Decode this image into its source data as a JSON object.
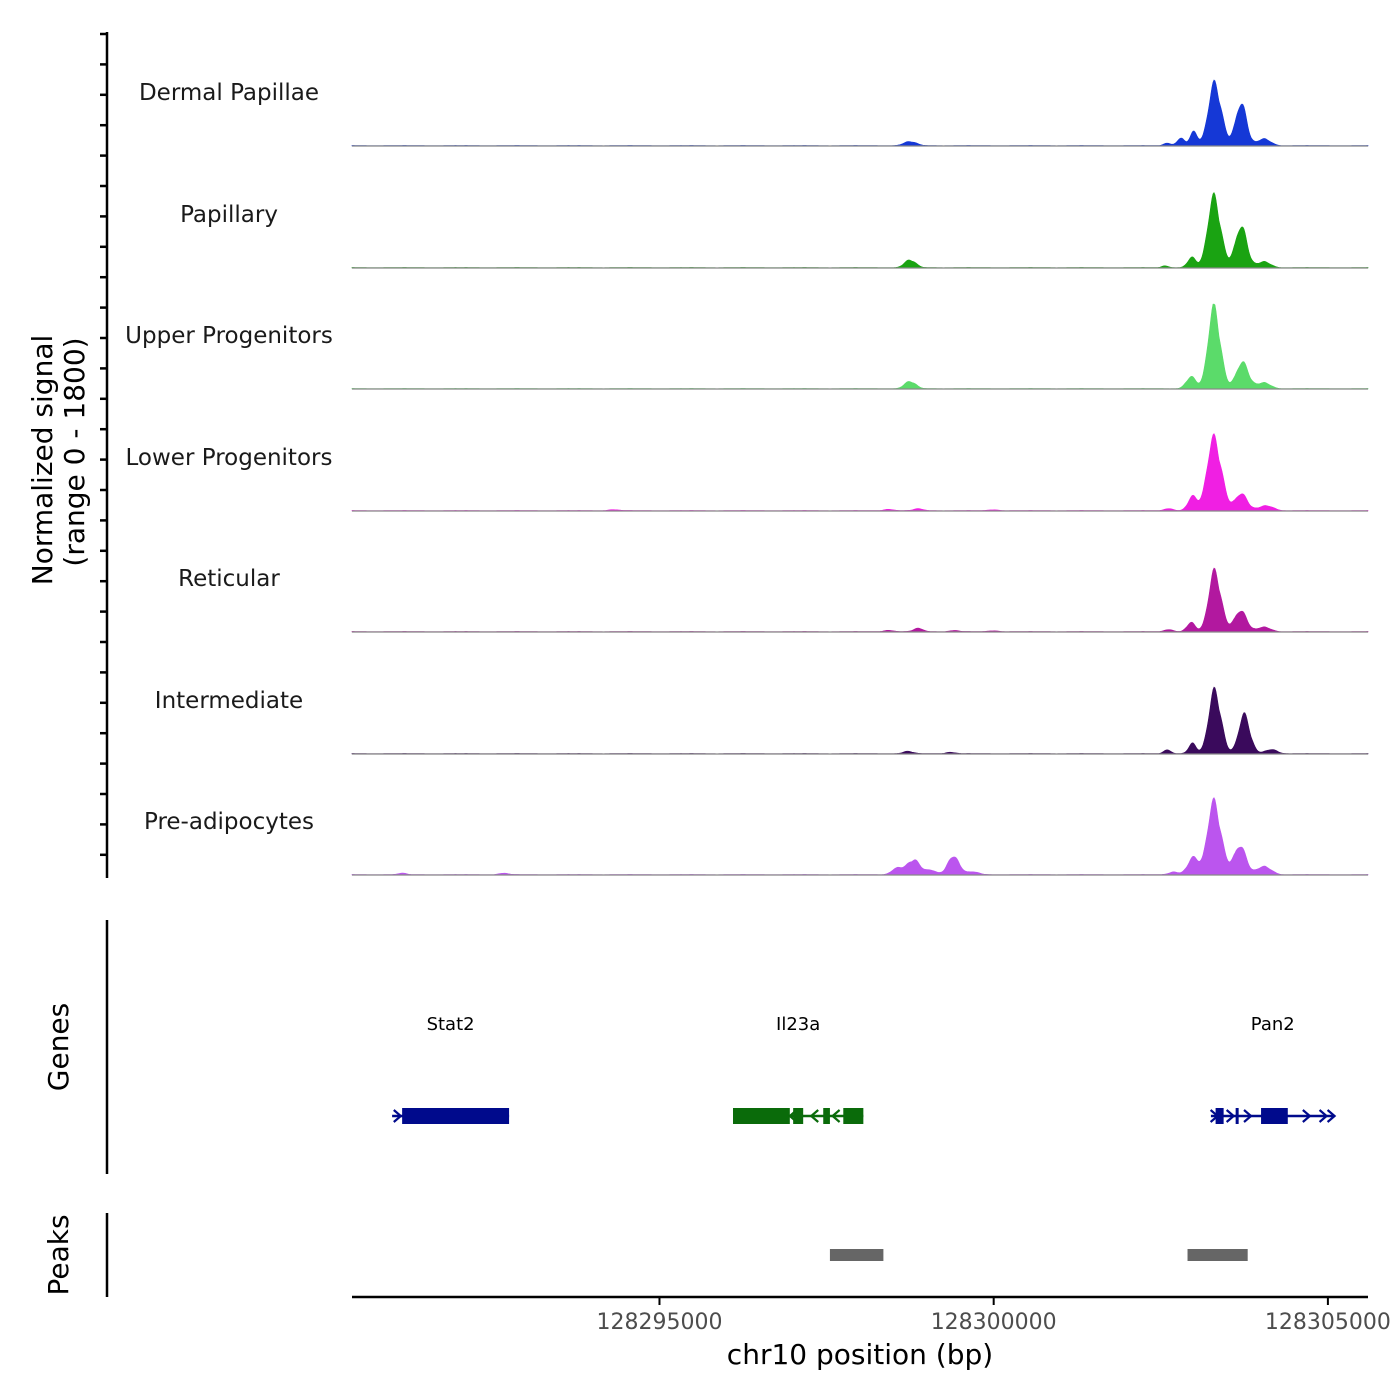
{
  "chart_data": {
    "type": "area",
    "title": "",
    "ylabel_line1": "Normalized signal",
    "ylabel_line2": "(range 0 - 1800)",
    "ylim": [
      0,
      1800
    ],
    "xlabel": "chr10 position (bp)",
    "xlim": [
      128290400,
      128305600
    ],
    "x_ticks": [
      128295000,
      128300000,
      128305000
    ],
    "x_tick_labels": [
      "128295000",
      "128300000",
      "128305000"
    ],
    "tracks": [
      {
        "name": "Dermal Papillae",
        "color": "#1538d6",
        "peaks": [
          {
            "x": 128298750,
            "y": 90,
            "w": 90
          },
          {
            "x": 128302600,
            "y": 60,
            "w": 50
          },
          {
            "x": 128302800,
            "y": 160,
            "w": 55
          },
          {
            "x": 128302990,
            "y": 290,
            "w": 55
          },
          {
            "x": 128303310,
            "y": 1360,
            "w": 95
          },
          {
            "x": 128303700,
            "y": 900,
            "w": 85
          },
          {
            "x": 128304050,
            "y": 150,
            "w": 90
          }
        ]
      },
      {
        "name": "Papillary",
        "color": "#1aa312",
        "peaks": [
          {
            "x": 128298750,
            "y": 170,
            "w": 80
          },
          {
            "x": 128302570,
            "y": 40,
            "w": 50
          },
          {
            "x": 128302960,
            "y": 220,
            "w": 60
          },
          {
            "x": 128303300,
            "y": 1540,
            "w": 95
          },
          {
            "x": 128303700,
            "y": 880,
            "w": 90
          },
          {
            "x": 128304050,
            "y": 130,
            "w": 90
          }
        ]
      },
      {
        "name": "Upper Progenitors",
        "color": "#5bdb6a",
        "peaks": [
          {
            "x": 128298750,
            "y": 160,
            "w": 80
          },
          {
            "x": 128302950,
            "y": 260,
            "w": 70
          },
          {
            "x": 128303300,
            "y": 1770,
            "w": 90
          },
          {
            "x": 128303720,
            "y": 560,
            "w": 95
          },
          {
            "x": 128304050,
            "y": 130,
            "w": 90
          }
        ]
      },
      {
        "name": "Lower Progenitors",
        "color": "#f01fe3",
        "peaks": [
          {
            "x": 128294310,
            "y": 20,
            "w": 80
          },
          {
            "x": 128298430,
            "y": 30,
            "w": 70
          },
          {
            "x": 128298870,
            "y": 40,
            "w": 70
          },
          {
            "x": 128300000,
            "y": 20,
            "w": 70
          },
          {
            "x": 128302620,
            "y": 50,
            "w": 60
          },
          {
            "x": 128302970,
            "y": 300,
            "w": 65
          },
          {
            "x": 128303300,
            "y": 1580,
            "w": 105
          },
          {
            "x": 128303700,
            "y": 360,
            "w": 95
          },
          {
            "x": 128304080,
            "y": 110,
            "w": 100
          }
        ]
      },
      {
        "name": "Reticular",
        "color": "#b2189f",
        "peaks": [
          {
            "x": 128298430,
            "y": 30,
            "w": 70
          },
          {
            "x": 128298870,
            "y": 70,
            "w": 70
          },
          {
            "x": 128299410,
            "y": 25,
            "w": 70
          },
          {
            "x": 128300000,
            "y": 20,
            "w": 70
          },
          {
            "x": 128302620,
            "y": 50,
            "w": 60
          },
          {
            "x": 128302950,
            "y": 200,
            "w": 60
          },
          {
            "x": 128303310,
            "y": 1320,
            "w": 90
          },
          {
            "x": 128303690,
            "y": 450,
            "w": 95
          },
          {
            "x": 128304050,
            "y": 100,
            "w": 90
          }
        ]
      },
      {
        "name": "Intermediate",
        "color": "#3a0a5c",
        "peaks": [
          {
            "x": 128298720,
            "y": 50,
            "w": 70
          },
          {
            "x": 128299350,
            "y": 30,
            "w": 70
          },
          {
            "x": 128302600,
            "y": 90,
            "w": 50
          },
          {
            "x": 128302970,
            "y": 220,
            "w": 55
          },
          {
            "x": 128303310,
            "y": 1380,
            "w": 90
          },
          {
            "x": 128303750,
            "y": 830,
            "w": 85
          },
          {
            "x": 128304150,
            "y": 90,
            "w": 90
          }
        ]
      },
      {
        "name": "Pre-adipocytes",
        "color": "#bb55ee",
        "peaks": [
          {
            "x": 128291150,
            "y": 30,
            "w": 60
          },
          {
            "x": 128292670,
            "y": 30,
            "w": 70
          },
          {
            "x": 128298560,
            "y": 150,
            "w": 80
          },
          {
            "x": 128298800,
            "y": 330,
            "w": 90
          },
          {
            "x": 128299050,
            "y": 100,
            "w": 80
          },
          {
            "x": 128299400,
            "y": 390,
            "w": 90
          },
          {
            "x": 128299700,
            "y": 60,
            "w": 80
          },
          {
            "x": 128302690,
            "y": 60,
            "w": 70
          },
          {
            "x": 128302980,
            "y": 360,
            "w": 80
          },
          {
            "x": 128303300,
            "y": 1580,
            "w": 100
          },
          {
            "x": 128303680,
            "y": 620,
            "w": 95
          },
          {
            "x": 128304050,
            "y": 180,
            "w": 100
          }
        ]
      }
    ],
    "genes_label": "Genes",
    "genes": [
      {
        "name": "Stat2",
        "color": "#000a8c",
        "strand": "+",
        "start": 128291000,
        "end": 128292750,
        "exons": [
          [
            128291150,
            128292750
          ]
        ],
        "arrows": [
          128291100
        ]
      },
      {
        "name": "Il23a",
        "color": "#0a6b0a",
        "strand": "-",
        "start": 128296100,
        "end": 128298050,
        "exons": [
          [
            128296100,
            128296950
          ],
          [
            128297000,
            128297150
          ],
          [
            128297450,
            128297550
          ],
          [
            128297750,
            128298050
          ]
        ],
        "arrows": [
          128296980,
          128297300,
          128297620
        ]
      },
      {
        "name": "Pan2",
        "color": "#000a8c",
        "strand": "+",
        "start": 128303250,
        "end": 128305100,
        "exons": [
          [
            128303320,
            128303440
          ],
          [
            128303620,
            128303660
          ],
          [
            128304000,
            128304400
          ]
        ],
        "arrows": [
          128303320,
          128303560,
          128303820,
          128304700,
          128304950,
          128305070
        ]
      }
    ],
    "peaks_label": "Peaks",
    "peak_regions": [
      [
        128297550,
        128298350
      ],
      [
        128302900,
        128303800
      ]
    ]
  }
}
